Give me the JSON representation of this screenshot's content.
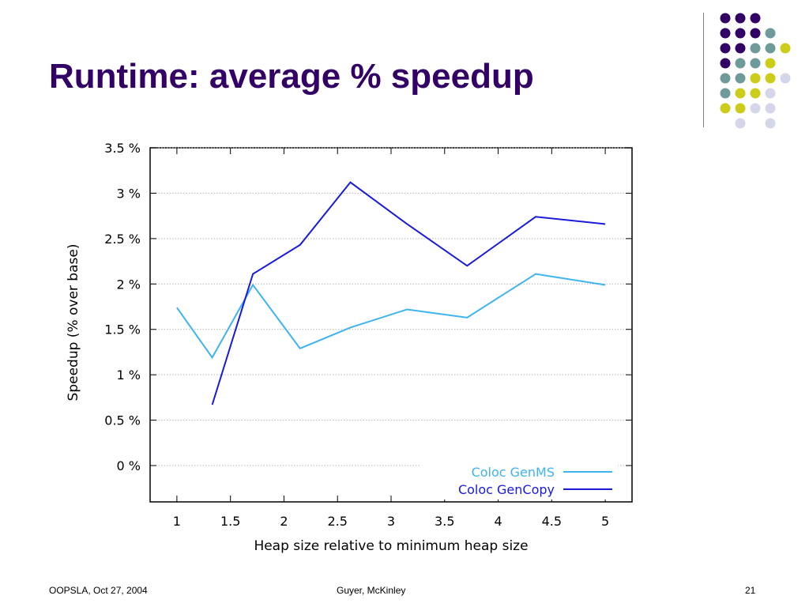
{
  "slide": {
    "title": "Runtime: average % speedup",
    "footer_left": "OOPSLA, Oct 27, 2004",
    "footer_center": "Guyer, McKinley",
    "footer_right": "21"
  },
  "decor": {
    "dot_colors": {
      "p": "#330066",
      "t": "#6f9a9a",
      "y": "#cccc1a",
      "l": "#d6d6ea"
    },
    "dot_rows": [
      "ppp",
      "pppt",
      "pptty",
      "ptty",
      "ttyyl",
      "tyyl",
      "yyll",
      ".l.l"
    ]
  },
  "chart_data": {
    "type": "line",
    "xlabel": "Heap size relative to minimum heap size",
    "ylabel": "Speedup (% over base)",
    "xlim": [
      0.75,
      5.25
    ],
    "ylim": [
      -0.4,
      3.5
    ],
    "xticks": [
      1,
      1.5,
      2,
      2.5,
      3,
      3.5,
      4,
      4.5,
      5
    ],
    "yticks": [
      {
        "v": 0,
        "label": "0 %"
      },
      {
        "v": 0.5,
        "label": "0.5 %"
      },
      {
        "v": 1,
        "label": "1 %"
      },
      {
        "v": 1.5,
        "label": "1.5 %"
      },
      {
        "v": 2,
        "label": "2 %"
      },
      {
        "v": 2.5,
        "label": "2.5 %"
      },
      {
        "v": 3,
        "label": "3 %"
      },
      {
        "v": 3.5,
        "label": "3.5 %"
      }
    ],
    "grid": true,
    "legend_position": "bottom-right",
    "series": [
      {
        "name": "Coloc GenMS",
        "color": "#3fb3f0",
        "x": [
          1.0,
          1.33,
          1.71,
          2.15,
          2.62,
          3.15,
          3.71,
          4.35,
          5.0
        ],
        "y": [
          1.74,
          1.19,
          1.99,
          1.29,
          1.52,
          1.72,
          1.63,
          2.11,
          1.99
        ]
      },
      {
        "name": "Coloc GenCopy",
        "color": "#1a1ad9",
        "x": [
          1.33,
          1.71,
          2.15,
          2.62,
          3.15,
          3.71,
          4.35,
          5.0
        ],
        "y": [
          0.67,
          2.11,
          2.43,
          3.12,
          2.66,
          2.2,
          2.74,
          2.66
        ]
      }
    ]
  }
}
